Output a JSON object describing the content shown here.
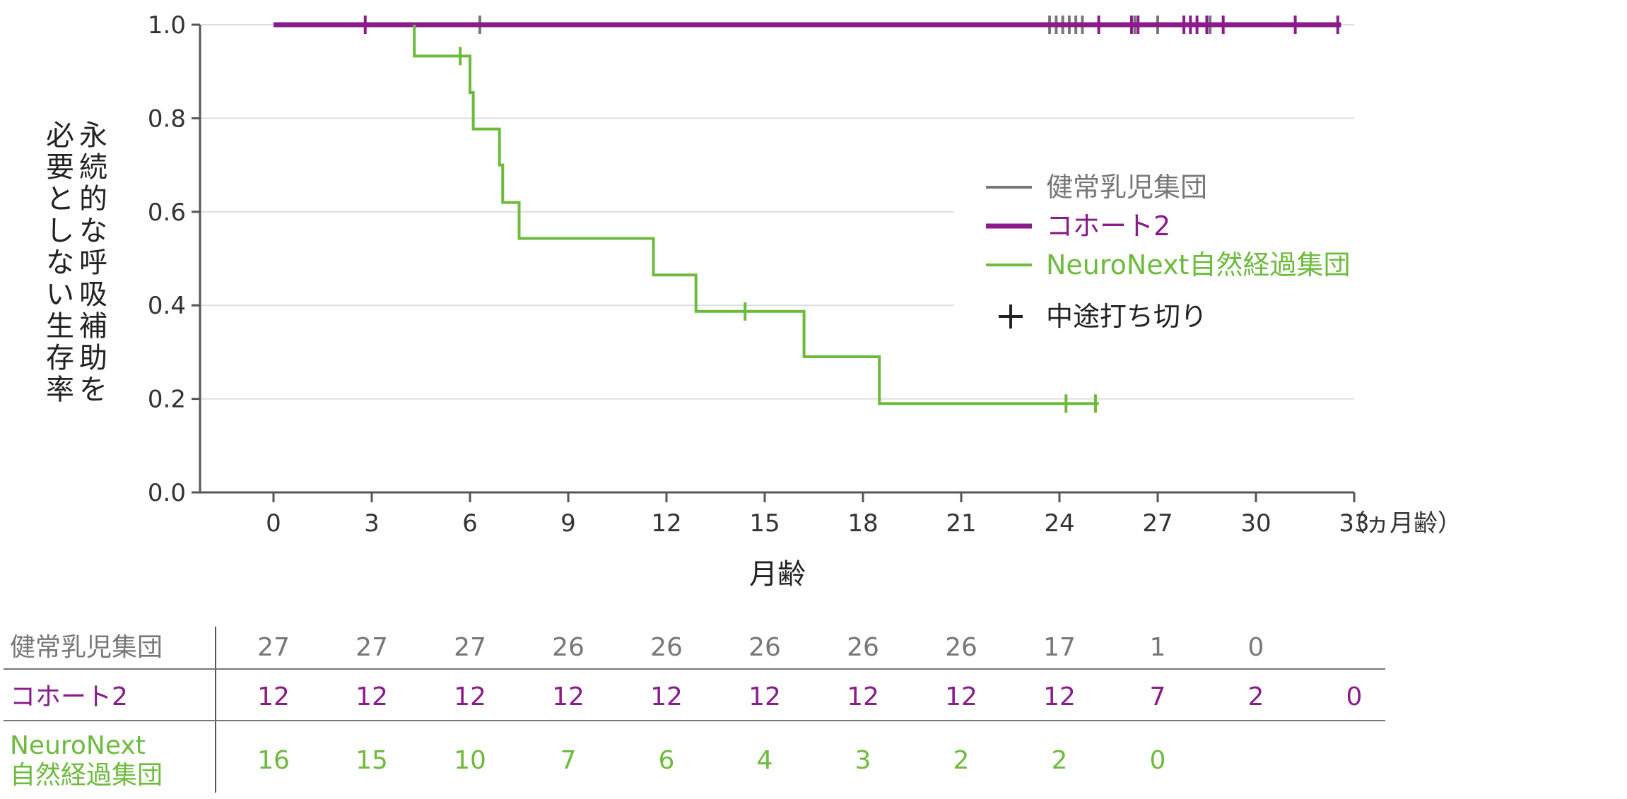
{
  "chart_data": {
    "type": "line",
    "subtype": "kaplan-meier",
    "xlabel": "月齢",
    "x_unit_label": "（ヵ月齢）",
    "ylabel_lines": [
      "永続的な呼吸補助を",
      "必要としない生存率"
    ],
    "xlim": [
      -2.2,
      33
    ],
    "ylim": [
      0,
      1.0
    ],
    "x_ticks": [
      0,
      3,
      6,
      9,
      12,
      15,
      18,
      21,
      24,
      27,
      30,
      33
    ],
    "y_ticks": [
      0.0,
      0.2,
      0.4,
      0.6,
      0.8,
      1.0
    ],
    "y_tick_labels": [
      "0.0",
      "0.2",
      "0.4",
      "0.6",
      "0.8",
      "1.0"
    ],
    "grid": "horizontal",
    "legend_placement": "right",
    "series": [
      {
        "name": "健常乳児集団",
        "color": "#777777",
        "steps": [
          [
            0,
            1.0
          ],
          [
            32.6,
            1.0
          ]
        ],
        "censor_x": [
          6.3,
          23.7,
          23.9,
          24.1,
          24.3,
          24.5,
          24.7,
          26.3,
          27.0,
          28.6
        ],
        "draw": "censors_only"
      },
      {
        "name": "コホート2",
        "color": "#8b1a8b",
        "steps": [
          [
            0,
            1.0
          ],
          [
            32.6,
            1.0
          ]
        ],
        "censor_x": [
          2.8,
          25.2,
          26.2,
          26.4,
          27.8,
          28.0,
          28.2,
          28.5,
          29.0,
          31.2,
          32.5
        ],
        "draw": "line"
      },
      {
        "name": "NeuroNext自然経過集団",
        "color": "#6dbb3c",
        "steps": [
          [
            4.3,
            1.0
          ],
          [
            4.3,
            0.933
          ],
          [
            6.0,
            0.933
          ],
          [
            6.0,
            0.855
          ],
          [
            6.1,
            0.855
          ],
          [
            6.1,
            0.777
          ],
          [
            6.9,
            0.777
          ],
          [
            6.9,
            0.7
          ],
          [
            7.0,
            0.7
          ],
          [
            7.0,
            0.62
          ],
          [
            7.5,
            0.62
          ],
          [
            7.5,
            0.543
          ],
          [
            11.6,
            0.543
          ],
          [
            11.6,
            0.465
          ],
          [
            12.9,
            0.465
          ],
          [
            12.9,
            0.387
          ],
          [
            16.2,
            0.387
          ],
          [
            16.2,
            0.29
          ],
          [
            18.5,
            0.29
          ],
          [
            18.5,
            0.19
          ],
          [
            25.2,
            0.19
          ]
        ],
        "censor": [
          [
            5.7,
            0.933
          ],
          [
            14.4,
            0.387
          ],
          [
            24.2,
            0.19
          ],
          [
            25.1,
            0.19
          ]
        ],
        "draw": "line"
      }
    ],
    "legend": [
      {
        "label": "健常乳児集団",
        "color": "#777777",
        "kind": "line"
      },
      {
        "label": "コホート2",
        "color": "#8b1a8b",
        "kind": "line"
      },
      {
        "label": "NeuroNext自然経過集団",
        "color": "#6dbb3c",
        "kind": "line"
      },
      {
        "label": "中途打ち切り",
        "color": "#222222",
        "kind": "plus"
      }
    ],
    "risk_table": {
      "rows": [
        {
          "label_lines": [
            "健常乳児集団"
          ],
          "color": "#777777",
          "values": [
            "27",
            "27",
            "27",
            "26",
            "26",
            "26",
            "26",
            "26",
            "17",
            "1",
            "0"
          ]
        },
        {
          "label_lines": [
            "コホート2"
          ],
          "color": "#8b1a8b",
          "values": [
            "12",
            "12",
            "12",
            "12",
            "12",
            "12",
            "12",
            "12",
            "12",
            "7",
            "2",
            "0"
          ]
        },
        {
          "label_lines": [
            "NeuroNext",
            "自然経過集団"
          ],
          "color": "#6dbb3c",
          "values": [
            "16",
            "15",
            "10",
            "7",
            "6",
            "4",
            "3",
            "2",
            "2",
            "0"
          ]
        }
      ]
    }
  }
}
